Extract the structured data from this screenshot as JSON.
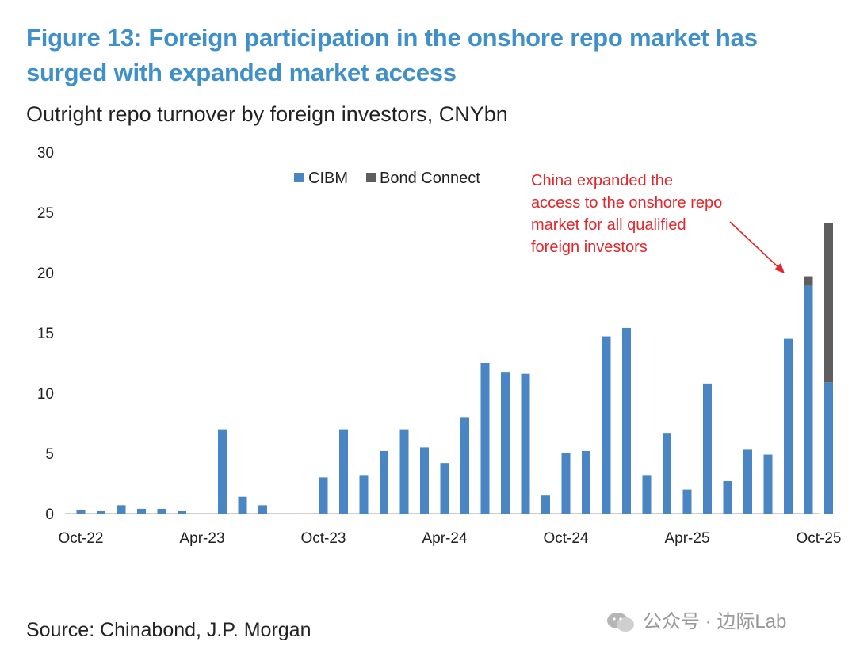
{
  "title": "Figure 13: Foreign participation in the onshore repo market has surged with expanded market access",
  "subtitle": "Outright repo turnover by foreign investors, CNYbn",
  "source": "Source: Chinabond, J.P. Morgan",
  "watermark": "公众号 · 边际Lab",
  "colors": {
    "title": "#3f8fc8",
    "cibm": "#4a86c3",
    "bond_connect": "#5e5e5e",
    "annotation": "#e3262b"
  },
  "chart_data": {
    "type": "bar",
    "stacked": true,
    "title": "Outright repo turnover by foreign investors, CNYbn",
    "xlabel": "",
    "ylabel": "",
    "ylim": [
      0,
      30
    ],
    "yticks": [
      0,
      5,
      10,
      15,
      20,
      25,
      30
    ],
    "x_tick_labels": [
      "Oct-22",
      "Apr-23",
      "Oct-23",
      "Apr-24",
      "Oct-24",
      "Apr-25",
      "Oct-25"
    ],
    "x_tick_index": [
      0,
      6,
      12,
      18,
      24,
      30,
      36
    ],
    "categories": [
      "Oct-22",
      "Nov-22",
      "Dec-22",
      "Jan-23",
      "Feb-23",
      "Mar-23",
      "Apr-23",
      "May-23",
      "Jun-23",
      "Jul-23",
      "Aug-23",
      "Sep-23",
      "Oct-23",
      "Nov-23",
      "Dec-23",
      "Jan-24",
      "Feb-24",
      "Mar-24",
      "Apr-24",
      "May-24",
      "Jun-24",
      "Jul-24",
      "Aug-24",
      "Sep-24",
      "Oct-24",
      "Nov-24",
      "Dec-24",
      "Jan-25",
      "Feb-25",
      "Mar-25",
      "Apr-25",
      "May-25",
      "Jun-25",
      "Jul-25",
      "Aug-25",
      "Sep-25",
      "Oct-25"
    ],
    "series": [
      {
        "name": "CIBM",
        "values": [
          0.3,
          0.2,
          0.7,
          0.4,
          0.4,
          0.2,
          0,
          7.0,
          1.4,
          0.7,
          0,
          0,
          3.0,
          7.0,
          3.2,
          5.2,
          7.0,
          5.5,
          4.2,
          8.0,
          12.5,
          11.7,
          11.6,
          1.5,
          5.0,
          5.2,
          14.7,
          15.4,
          3.2,
          6.7,
          2.0,
          10.8,
          2.7,
          5.3,
          4.9,
          14.5,
          18.9
        ]
      },
      {
        "name": "Bond Connect",
        "values": [
          0,
          0,
          0,
          0,
          0,
          0,
          0,
          0,
          0,
          0,
          0,
          0,
          0,
          0,
          0,
          0,
          0,
          0,
          0,
          0,
          0,
          0,
          0,
          0,
          0,
          0,
          0,
          0,
          0,
          0,
          0,
          0,
          0,
          0,
          0,
          0,
          0.8
        ]
      }
    ],
    "extra_bar": {
      "label": "Oct-25 (latest)",
      "CIBM": 10.9,
      "Bond Connect": 13.2
    },
    "legend": [
      "CIBM",
      "Bond Connect"
    ],
    "legend_position": "top-center",
    "annotation": {
      "lines": [
        "China expanded the",
        "access to the onshore repo",
        "market for all qualified",
        "foreign investors"
      ]
    }
  }
}
